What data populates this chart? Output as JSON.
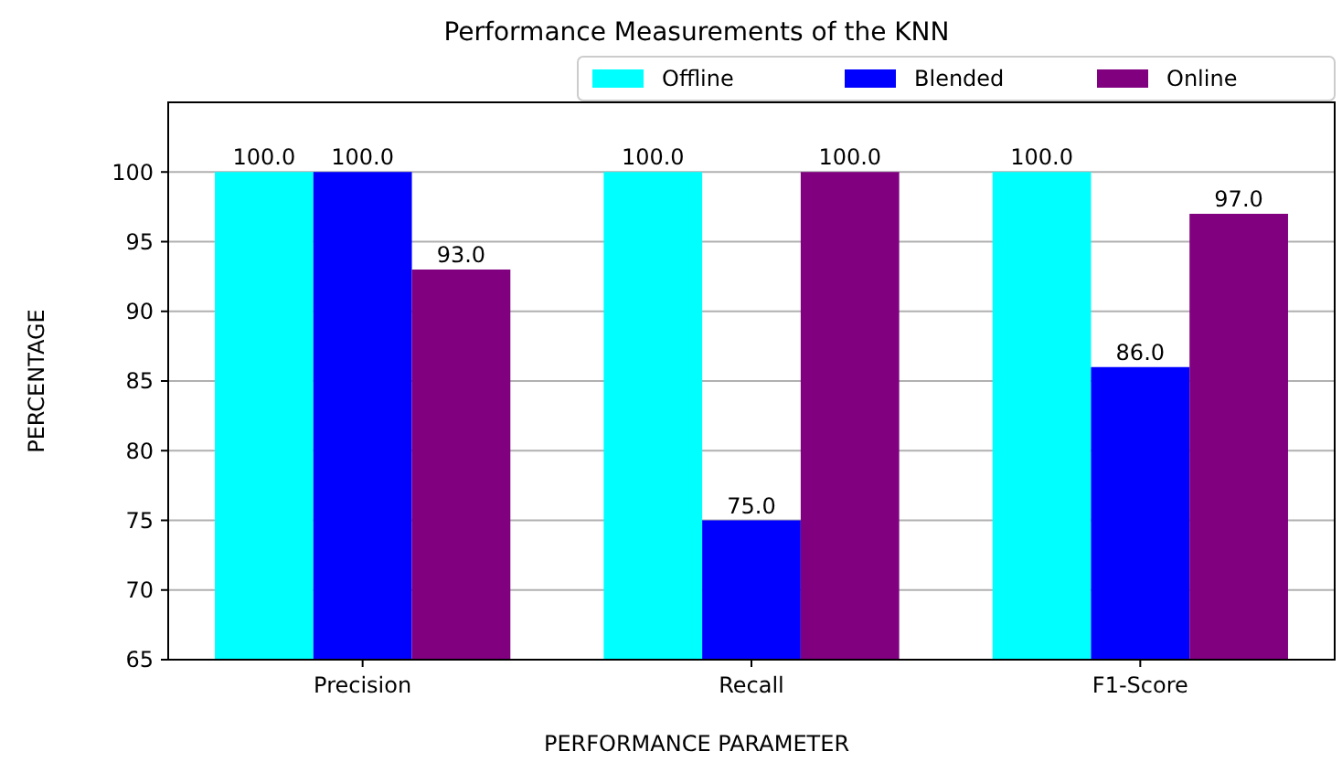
{
  "chart_data": {
    "type": "bar",
    "title": "Performance Measurements of the KNN",
    "xlabel": "PERFORMANCE PARAMETER",
    "ylabel": "PERCENTAGE",
    "categories": [
      "Precision",
      "Recall",
      "F1-Score"
    ],
    "series": [
      {
        "name": "Offline",
        "color": "#00ffff",
        "values": [
          100.0,
          100.0,
          100.0
        ]
      },
      {
        "name": "Blended",
        "color": "#0000ff",
        "values": [
          100.0,
          75.0,
          86.0
        ]
      },
      {
        "name": "Online",
        "color": "#800080",
        "values": [
          93.0,
          100.0,
          97.0
        ]
      }
    ],
    "value_labels": [
      [
        "100.0",
        "100.0",
        "100.0"
      ],
      [
        "100.0",
        "75.0",
        "86.0"
      ],
      [
        "93.0",
        "100.0",
        "97.0"
      ]
    ],
    "ylim": [
      65,
      105
    ],
    "yticks": [
      65,
      70,
      75,
      80,
      85,
      90,
      95,
      100
    ],
    "grid": "y",
    "legend": "top right"
  }
}
